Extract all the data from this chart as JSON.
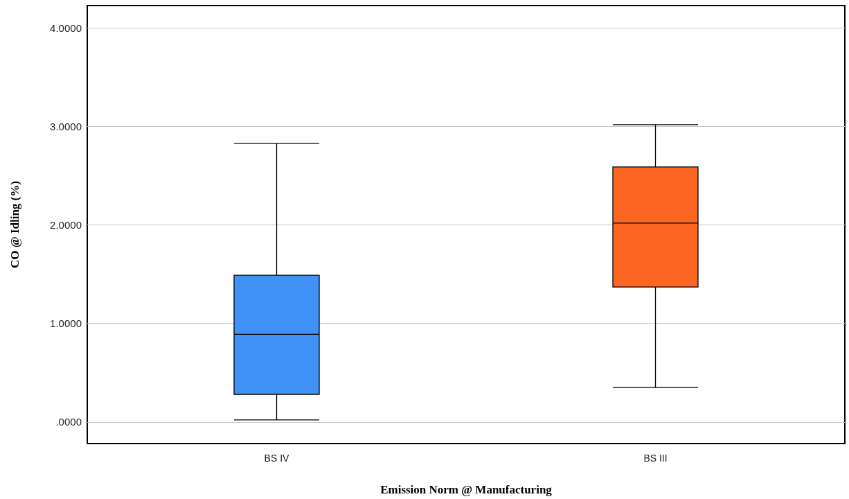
{
  "chart_data": {
    "type": "box",
    "xlabel": "Emission Norm @ Manufacturing",
    "ylabel": "CO @ Idling (%)",
    "categories": [
      "BS IV",
      "BS III"
    ],
    "boxes": [
      {
        "low": 0.02,
        "q1": 0.28,
        "median": 0.89,
        "q3": 1.49,
        "high": 2.83
      },
      {
        "low": 0.35,
        "q1": 1.37,
        "median": 2.02,
        "q3": 2.59,
        "high": 3.02
      }
    ],
    "colors": [
      "#4192f6",
      "#fc6522"
    ],
    "ylim": [
      -0.22,
      4.23
    ],
    "yticks": [
      {
        "value": 0,
        "label": ".0000"
      },
      {
        "value": 1,
        "label": "1.0000"
      },
      {
        "value": 2,
        "label": "2.0000"
      },
      {
        "value": 3,
        "label": "3.0000"
      },
      {
        "value": 4,
        "label": "4.0000"
      }
    ],
    "grid": "y"
  }
}
